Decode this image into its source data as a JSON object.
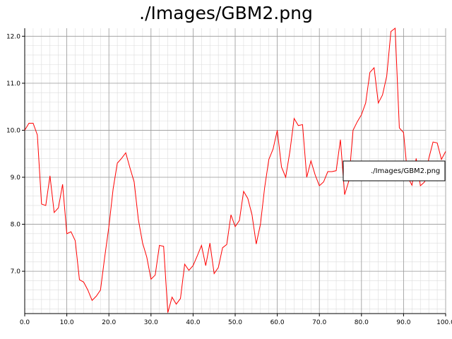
{
  "chart_data": {
    "type": "line",
    "title": "./Images/GBM2.png",
    "xlabel": "",
    "ylabel": "",
    "xlim": [
      0,
      100
    ],
    "ylim": [
      6.1,
      12.17
    ],
    "x_ticks": [
      0,
      10,
      20,
      30,
      40,
      50,
      60,
      70,
      80,
      90,
      100
    ],
    "x_tick_labels": [
      "0.0",
      "10.0",
      "20.0",
      "30.0",
      "40.0",
      "50.0",
      "60.0",
      "70.0",
      "80.0",
      "90.0",
      "100.0"
    ],
    "y_ticks": [
      7,
      8,
      9,
      10,
      11,
      12
    ],
    "y_tick_labels": [
      "7.0",
      "8.0",
      "9.0",
      "10.0",
      "11.0",
      "12.0"
    ],
    "grid": true,
    "legend": {
      "position": "right",
      "entries": [
        "./Images/GBM2.png"
      ]
    },
    "series": [
      {
        "name": "./Images/GBM2.png",
        "color": "#ff0000",
        "x": [
          0,
          1,
          2,
          3,
          4,
          5,
          6,
          7,
          8,
          9,
          10,
          11,
          12,
          13,
          14,
          15,
          16,
          17,
          18,
          19,
          20,
          21,
          22,
          23,
          24,
          25,
          26,
          27,
          28,
          29,
          30,
          31,
          32,
          33,
          34,
          35,
          36,
          37,
          38,
          39,
          40,
          41,
          42,
          43,
          44,
          45,
          46,
          47,
          48,
          49,
          50,
          51,
          52,
          53,
          54,
          55,
          56,
          57,
          58,
          59,
          60,
          61,
          62,
          63,
          64,
          65,
          66,
          67,
          68,
          69,
          70,
          71,
          72,
          73,
          74,
          75,
          76,
          77,
          78,
          79,
          80,
          81,
          82,
          83,
          84,
          85,
          86,
          87,
          88,
          89,
          90,
          91,
          92,
          93,
          94,
          95,
          96,
          97,
          98,
          99,
          100
        ],
        "values": [
          10.0,
          10.15,
          10.15,
          9.9,
          8.43,
          8.4,
          9.03,
          8.25,
          8.35,
          8.85,
          7.8,
          7.84,
          7.65,
          6.82,
          6.77,
          6.6,
          6.38,
          6.47,
          6.6,
          7.3,
          7.95,
          8.75,
          9.3,
          9.4,
          9.52,
          9.2,
          8.9,
          8.1,
          7.6,
          7.3,
          6.83,
          6.92,
          7.55,
          7.53,
          6.12,
          6.45,
          6.3,
          6.42,
          7.15,
          7.02,
          7.12,
          7.33,
          7.55,
          7.12,
          7.6,
          6.95,
          7.08,
          7.5,
          7.57,
          8.2,
          7.95,
          8.08,
          8.7,
          8.55,
          8.2,
          7.58,
          8.0,
          8.78,
          9.38,
          9.6,
          10.0,
          9.22,
          9.0,
          9.55,
          10.25,
          10.1,
          10.12,
          9.0,
          9.35,
          9.05,
          8.82,
          8.9,
          9.12,
          9.12,
          9.14,
          9.8,
          8.63,
          8.92,
          10.0,
          10.18,
          10.33,
          10.58,
          11.23,
          11.33,
          10.58,
          10.75,
          11.15,
          12.1,
          12.17,
          10.05,
          9.95,
          9.0,
          8.83,
          9.4,
          8.82,
          8.9,
          9.4,
          9.75,
          9.73,
          9.38,
          9.55
        ]
      }
    ]
  }
}
